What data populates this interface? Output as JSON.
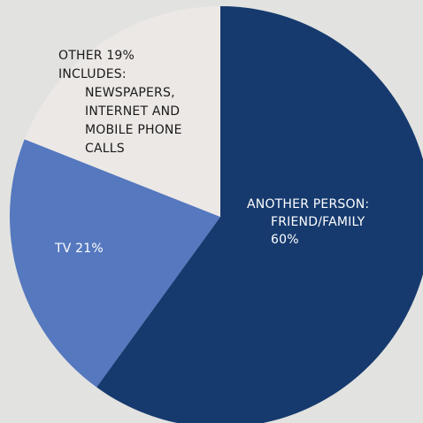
{
  "chart_data": {
    "type": "pie",
    "start_angle_deg": 0,
    "direction": "clockwise",
    "slices": [
      {
        "key": "another-person",
        "value": 60,
        "color": "#163a6e",
        "label_color": "#ffffff",
        "label_lines": [
          "ANOTHER PERSON:",
          "FRIEND/FAMILY",
          "60%"
        ]
      },
      {
        "key": "tv",
        "value": 21,
        "color": "#5578bf",
        "label_color": "#ffffff",
        "label_lines": [
          "TV 21%"
        ]
      },
      {
        "key": "other",
        "value": 19,
        "color": "#ece8e6",
        "label_color": "#1a1a1a",
        "label_lines": [
          "OTHER 19%",
          "INCLUDES:",
          "NEWSPAPERS,",
          "INTERNET AND",
          "MOBILE PHONE",
          "CALLS"
        ]
      }
    ]
  }
}
